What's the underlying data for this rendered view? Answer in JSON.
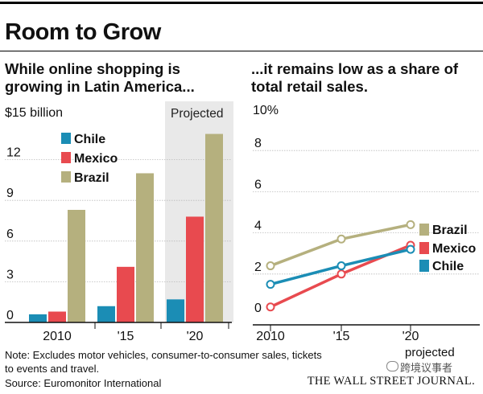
{
  "headline": "Room to Grow",
  "left_subtitle_line1": "While online shopping is",
  "left_subtitle_line2": "growing in Latin America...",
  "right_subtitle_line1": "...it remains low as a share of",
  "right_subtitle_line2": "total retail sales.",
  "left_unit": "$15 billion",
  "right_unit": "10%",
  "projected_label": "Projected",
  "projected_xlabel": "projected",
  "note_line1": "Note: Excludes motor vehicles, consumer-to-consumer sales, tickets",
  "note_line2": "to events and travel.",
  "source": "Source: Euromonitor International",
  "credit": "THE WALL STREET JOURNAL.",
  "watermark": "跨境议事者",
  "colors": {
    "Chile": "#1b8db5",
    "Mexico": "#e84a4f",
    "Brazil": "#b5b07e",
    "projected_band": "#e9e9e9",
    "grid": "#bbbbbb"
  },
  "chart_data": [
    {
      "type": "bar",
      "categories": [
        "2010",
        "'15",
        "'20"
      ],
      "series": [
        {
          "name": "Chile",
          "values": [
            0.6,
            1.2,
            1.7
          ]
        },
        {
          "name": "Mexico",
          "values": [
            0.8,
            4.1,
            7.8
          ]
        },
        {
          "name": "Brazil",
          "values": [
            8.3,
            11.0,
            13.9
          ]
        }
      ],
      "ylim": [
        0,
        15
      ],
      "yticks": [
        "0",
        "3",
        "6",
        "9",
        "12"
      ],
      "legend": "top-left",
      "projected_category": "'20"
    },
    {
      "type": "line",
      "categories": [
        "2010",
        "'15",
        "'20"
      ],
      "series": [
        {
          "name": "Brazil",
          "values": [
            2.4,
            3.7,
            4.4
          ]
        },
        {
          "name": "Mexico",
          "values": [
            0.4,
            2.0,
            3.4
          ]
        },
        {
          "name": "Chile",
          "values": [
            1.5,
            2.4,
            3.2
          ]
        }
      ],
      "ylim": [
        0,
        10
      ],
      "yticks": [
        "0",
        "2",
        "4",
        "6",
        "8"
      ],
      "legend": "right-end"
    }
  ]
}
